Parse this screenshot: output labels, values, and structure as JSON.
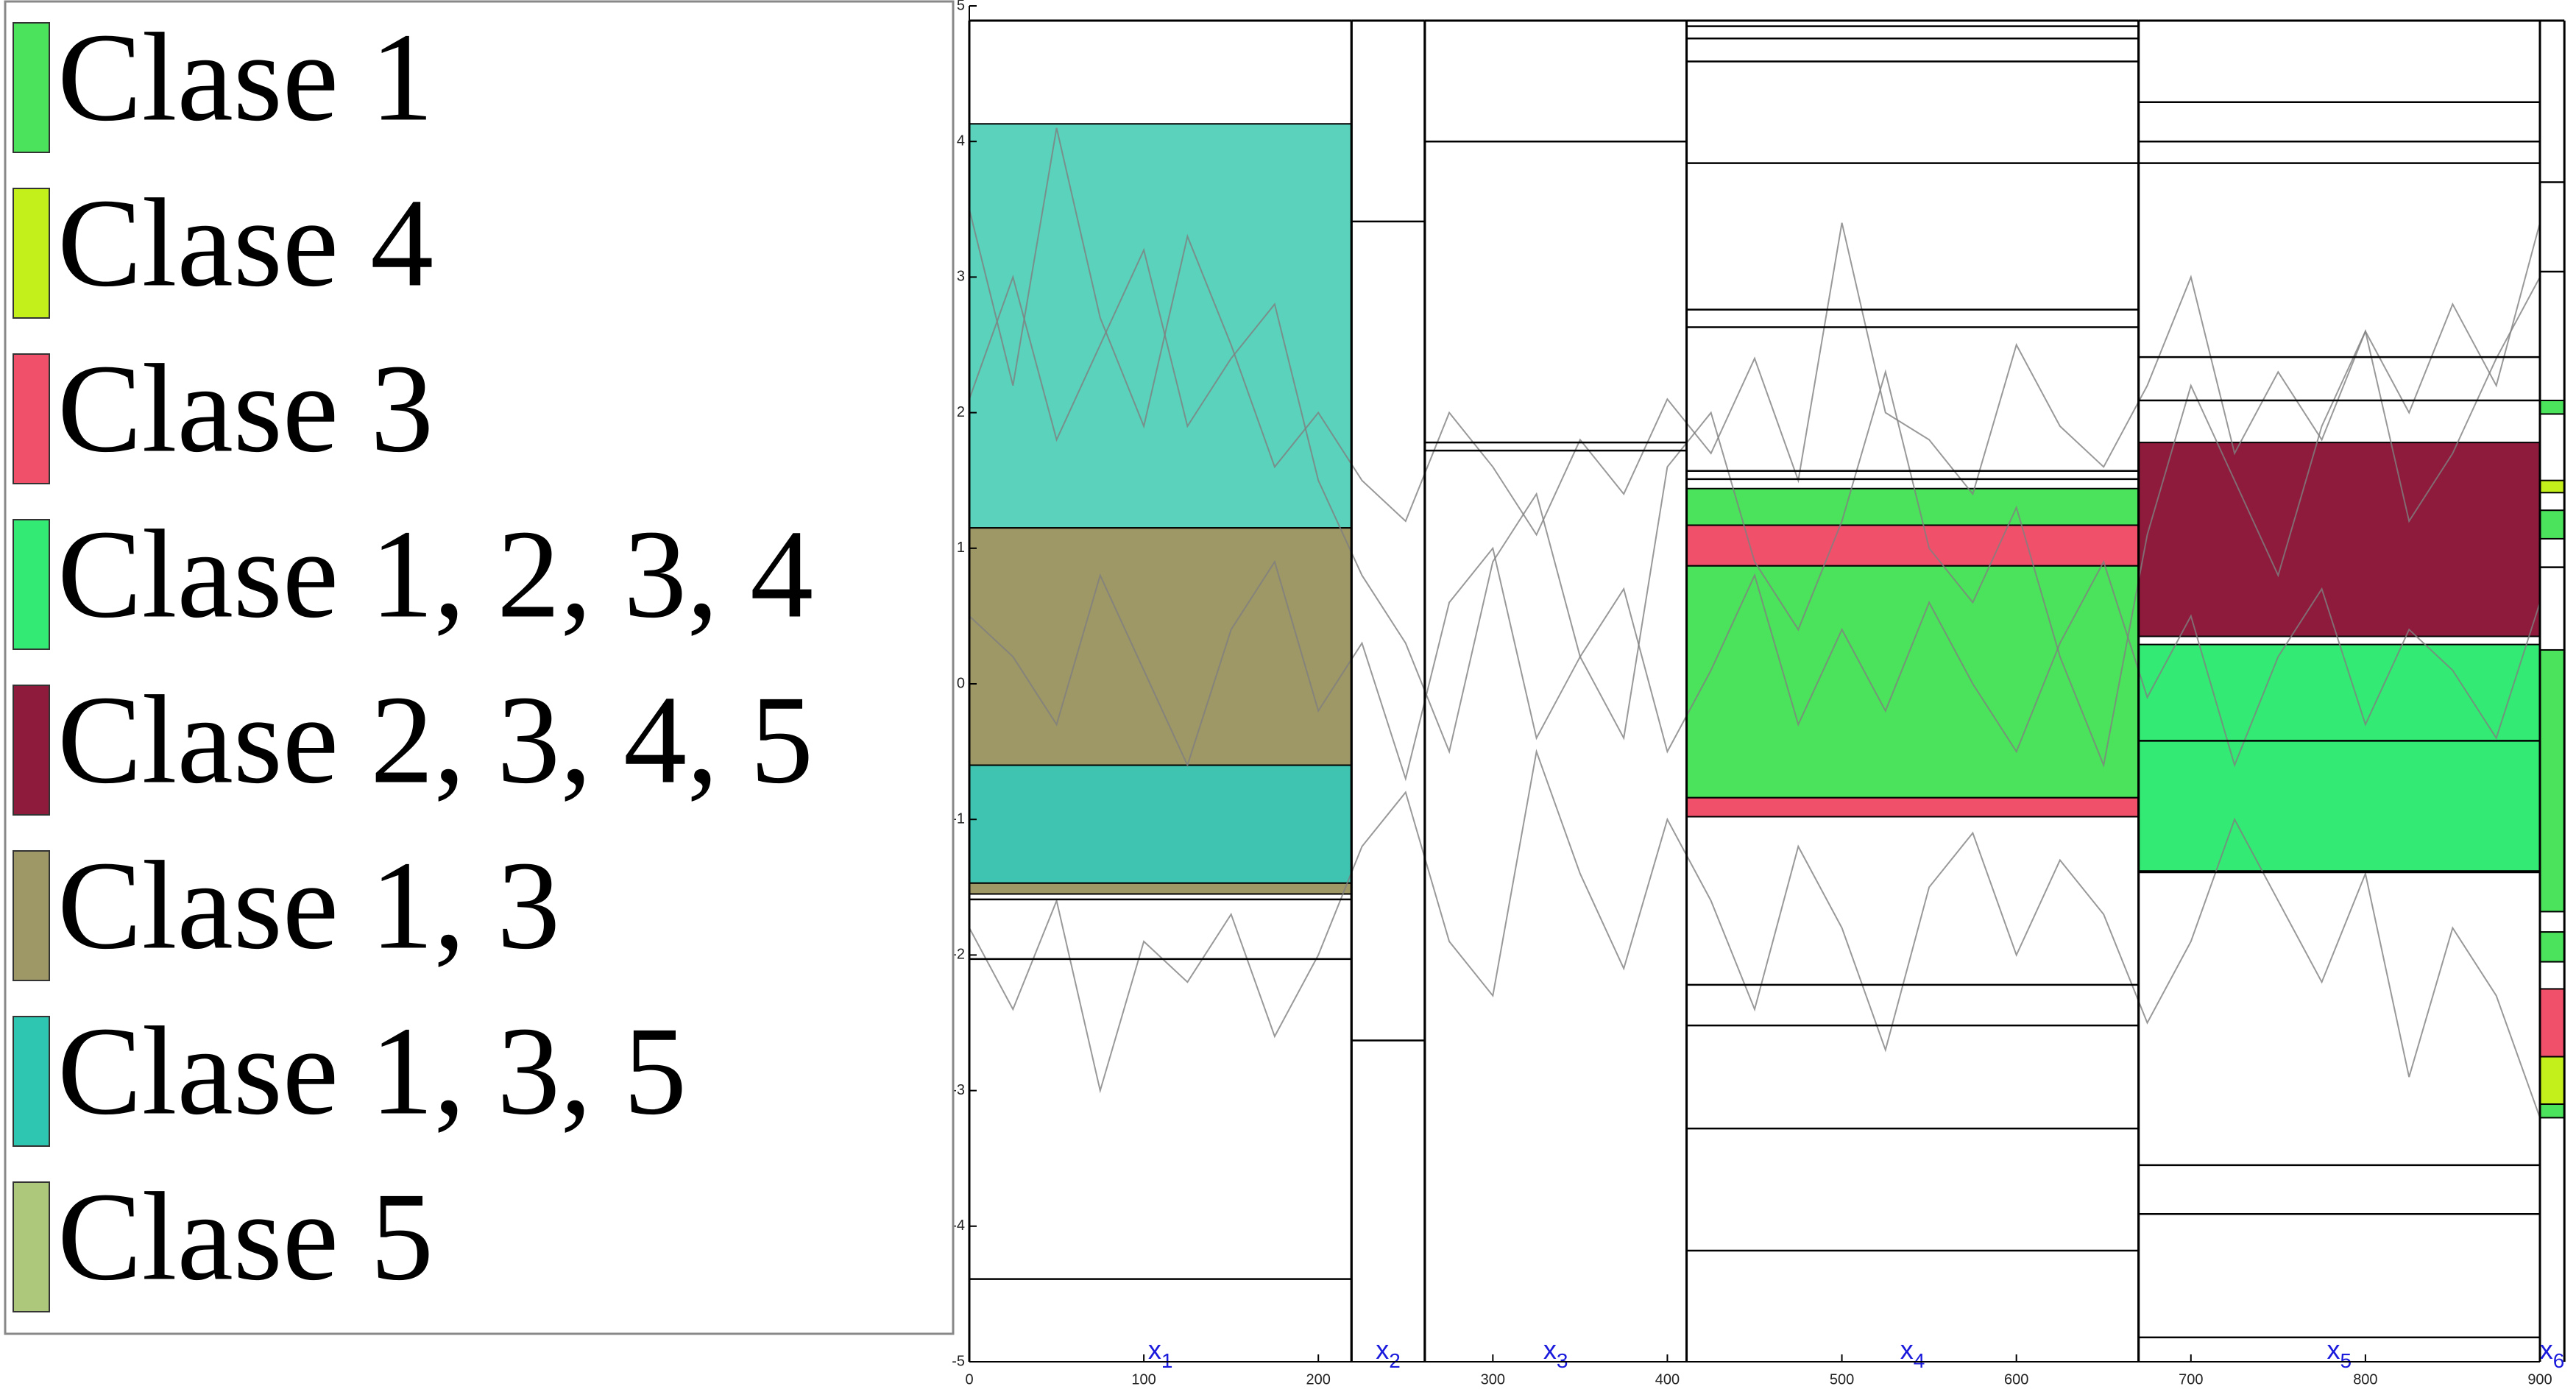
{
  "chart_data": {
    "type": "line",
    "legend": [
      {
        "label": "Clase 1",
        "color": "#4be35b"
      },
      {
        "label": "Clase 4",
        "color": "#c3f01a"
      },
      {
        "label": "Clase 3",
        "color": "#f0506a"
      },
      {
        "label": "Clase 1, 2, 3, 4",
        "color": "#33ea74"
      },
      {
        "label": "Clase 2, 3, 4, 5",
        "color": "#8e1a3c"
      },
      {
        "label": "Clase 1, 3",
        "color": "#9e9766"
      },
      {
        "label": "Clase 1, 3, 5",
        "color": "#2ec6b0"
      },
      {
        "label": "Clase 5",
        "color": "#adc87a"
      }
    ],
    "xlim": [
      0,
      900
    ],
    "ylim": [
      -5,
      5
    ],
    "xticks": [
      0,
      100,
      200,
      300,
      400,
      500,
      600,
      700,
      800,
      900
    ],
    "yticks": [
      -5,
      -4,
      -3,
      -2,
      -1,
      0,
      1,
      2,
      3,
      4,
      5
    ],
    "line_color": "#808080",
    "x": [
      0,
      25,
      50,
      75,
      100,
      125,
      150,
      175,
      200,
      225,
      250,
      275,
      300,
      325,
      350,
      375,
      400,
      425,
      450,
      475,
      500,
      525,
      550,
      575,
      600,
      625,
      650,
      675,
      700,
      725,
      750,
      775,
      800,
      825,
      850,
      875,
      900
    ],
    "series": [
      {
        "values": [
          2.1,
          3.0,
          1.8,
          2.5,
          3.2,
          1.9,
          2.4,
          2.8,
          1.5,
          0.8,
          0.3,
          -0.5,
          0.9,
          1.4,
          0.2,
          -0.4,
          1.6,
          2.0,
          0.9,
          0.4,
          1.2,
          2.3,
          1.0,
          0.6,
          1.3,
          0.2,
          -0.6,
          1.1,
          2.2,
          1.5,
          0.8,
          1.9,
          2.6,
          1.2,
          1.7,
          2.4,
          3.0
        ]
      },
      {
        "values": [
          -1.8,
          -2.4,
          -1.6,
          -3.0,
          -1.9,
          -2.2,
          -1.7,
          -2.6,
          -2.0,
          -1.2,
          -0.8,
          -1.9,
          -2.3,
          -0.5,
          -1.4,
          -2.1,
          -1.0,
          -1.6,
          -2.4,
          -1.2,
          -1.8,
          -2.7,
          -1.5,
          -1.1,
          -2.0,
          -1.3,
          -1.7,
          -2.5,
          -1.9,
          -1.0,
          -1.6,
          -2.2,
          -1.4,
          -2.9,
          -1.8,
          -2.3,
          -3.2
        ]
      },
      {
        "values": [
          0.5,
          0.2,
          -0.3,
          0.8,
          0.1,
          -0.6,
          0.4,
          0.9,
          -0.2,
          0.3,
          -0.7,
          0.6,
          1.0,
          -0.4,
          0.2,
          0.7,
          -0.5,
          0.1,
          0.8,
          -0.3,
          0.4,
          -0.2,
          0.6,
          0.0,
          -0.5,
          0.3,
          0.9,
          -0.1,
          0.5,
          -0.6,
          0.2,
          0.7,
          -0.3,
          0.4,
          0.1,
          -0.4,
          0.6
        ]
      },
      {
        "values": [
          3.5,
          2.2,
          4.1,
          2.7,
          1.9,
          3.3,
          2.5,
          1.6,
          2.0,
          1.5,
          1.2,
          2.0,
          1.6,
          1.1,
          1.8,
          1.4,
          2.1,
          1.7,
          2.4,
          1.5,
          3.4,
          2.0,
          1.8,
          1.4,
          2.5,
          1.9,
          1.6,
          2.2,
          3.0,
          1.7,
          2.3,
          1.8,
          2.6,
          2.0,
          2.8,
          2.2,
          3.4
        ]
      }
    ],
    "segments": [
      {
        "x": [
          0,
          219
        ],
        "variable": {
          "base": "x",
          "sub": "1"
        },
        "lines": [
          -1.59,
          -2.03,
          -4.39
        ],
        "boxes": [
          {
            "y": [
              4.13,
              1.15
            ],
            "color": "#5ad2bc"
          },
          {
            "y": [
              1.15,
              -0.6
            ],
            "color": "#9e9766"
          },
          {
            "y": [
              -0.6,
              -1.47
            ],
            "color": "#3ec4b0"
          },
          {
            "y": [
              -1.47,
              -1.55
            ],
            "color": "#9e9766"
          }
        ]
      },
      {
        "x": [
          219,
          261
        ],
        "variable": {
          "base": "x",
          "sub": "2"
        },
        "lines": [
          3.41,
          -2.63
        ],
        "boxes": []
      },
      {
        "x": [
          261,
          411
        ],
        "variable": {
          "base": "x",
          "sub": "3"
        },
        "lines": [
          4.0,
          1.78,
          1.72
        ],
        "boxes": []
      },
      {
        "x": [
          411,
          670
        ],
        "variable": {
          "base": "x",
          "sub": "4"
        },
        "lines": [
          4.85,
          4.76,
          4.59,
          3.84,
          2.76,
          2.63,
          1.57,
          1.51,
          -2.22,
          -2.52,
          -3.28,
          -4.18
        ],
        "boxes": [
          {
            "y": [
              1.44,
              1.17
            ],
            "color": "#4be35b"
          },
          {
            "y": [
              1.17,
              0.87
            ],
            "color": "#f0506a"
          },
          {
            "y": [
              0.87,
              -0.84
            ],
            "color": "#4be35b"
          },
          {
            "y": [
              -0.84,
              -0.98
            ],
            "color": "#f0506a"
          }
        ]
      },
      {
        "x": [
          670,
          900
        ],
        "variable": {
          "base": "x",
          "sub": "5"
        },
        "lines": [
          4.29,
          4.0,
          3.84,
          2.41,
          2.09,
          -0.42,
          -1.39,
          -3.55,
          -3.91,
          -4.82
        ],
        "boxes": [
          {
            "y": [
              1.78,
              0.35
            ],
            "color": "#8e1a3c"
          },
          {
            "y": [
              0.29,
              -1.38
            ],
            "color": "#33ea74"
          }
        ]
      },
      {
        "x": [
          900,
          914
        ],
        "variable": {
          "base": "x",
          "sub": "6"
        },
        "lines": [
          3.7,
          3.04,
          0.86
        ],
        "boxes": [
          {
            "y": [
              2.09,
              1.99
            ],
            "color": "#4be35b"
          },
          {
            "y": [
              1.5,
              1.41
            ],
            "color": "#c3f01a"
          },
          {
            "y": [
              1.28,
              1.07
            ],
            "color": "#4be35b"
          },
          {
            "y": [
              0.25,
              -1.68
            ],
            "color": "#4be35b"
          },
          {
            "y": [
              -1.83,
              -2.05
            ],
            "color": "#4be35b"
          },
          {
            "y": [
              -2.25,
              -2.75
            ],
            "color": "#f0506a"
          },
          {
            "y": [
              -2.75,
              -3.1
            ],
            "color": "#c3f01a"
          },
          {
            "y": [
              -3.1,
              -3.2
            ],
            "color": "#4be35b"
          }
        ]
      }
    ]
  }
}
